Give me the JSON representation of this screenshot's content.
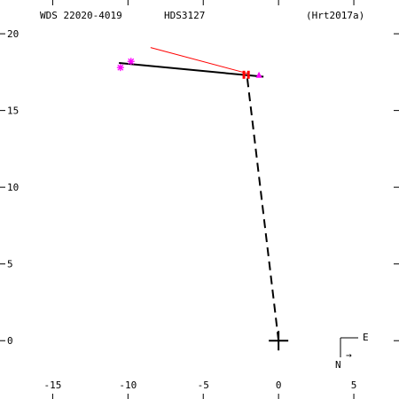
{
  "header": {
    "wds_id": "WDS 22020-4019",
    "discoverer_code": "HDS3127",
    "reference": "(Hrt2017a)"
  },
  "chart_data": {
    "type": "scatter",
    "title": "",
    "xlabel": "",
    "ylabel": "",
    "xlim": [
      -18.5,
      8
    ],
    "ylim": [
      -3.8,
      22.2
    ],
    "x_ticks": [
      -15,
      -10,
      -5,
      0,
      5
    ],
    "y_ticks": [
      0,
      5,
      10,
      15,
      20
    ],
    "x_tick_labels": [
      "-15",
      "-10",
      "-5",
      "0",
      "5"
    ],
    "y_tick_labels": [
      "0",
      "5",
      "10",
      "15",
      "20"
    ],
    "grid": false,
    "primary_star": {
      "x": 0,
      "y": 0
    },
    "orbit_fit_line": {
      "points": [
        {
          "x": -10.6,
          "y": 18.1
        },
        {
          "x": -2.1,
          "y": 17.3
        },
        {
          "x": -1.0,
          "y": 17.2
        }
      ]
    },
    "separation_line": {
      "from": {
        "x": 0,
        "y": 0
      },
      "to": {
        "x": -2.1,
        "y": 17.3
      }
    },
    "residual_line": {
      "from": {
        "x": -8.5,
        "y": 19.1
      },
      "to": {
        "x": -2.0,
        "y": 17.4
      }
    },
    "series": [
      {
        "marker": "asterisk",
        "color": "#ff00ff",
        "points": [
          {
            "x": -10.5,
            "y": 17.8
          },
          {
            "x": -9.8,
            "y": 18.2
          }
        ]
      },
      {
        "marker": "triangle",
        "color": "#ff00ff",
        "points": [
          {
            "x": -1.3,
            "y": 17.3
          }
        ]
      },
      {
        "marker": "bar",
        "color": "#ff0000",
        "points": [
          {
            "x": -2.3,
            "y": 17.3
          },
          {
            "x": -2.0,
            "y": 17.3
          }
        ]
      }
    ],
    "compass": {
      "east_label": "E",
      "north_label": "N",
      "arrow_glyph": "→"
    }
  },
  "colors": {
    "axis": "#000000",
    "residual": "#ff0000",
    "marker_magenta": "#ff00ff",
    "marker_red": "#ff0000",
    "fit": "#000000"
  }
}
